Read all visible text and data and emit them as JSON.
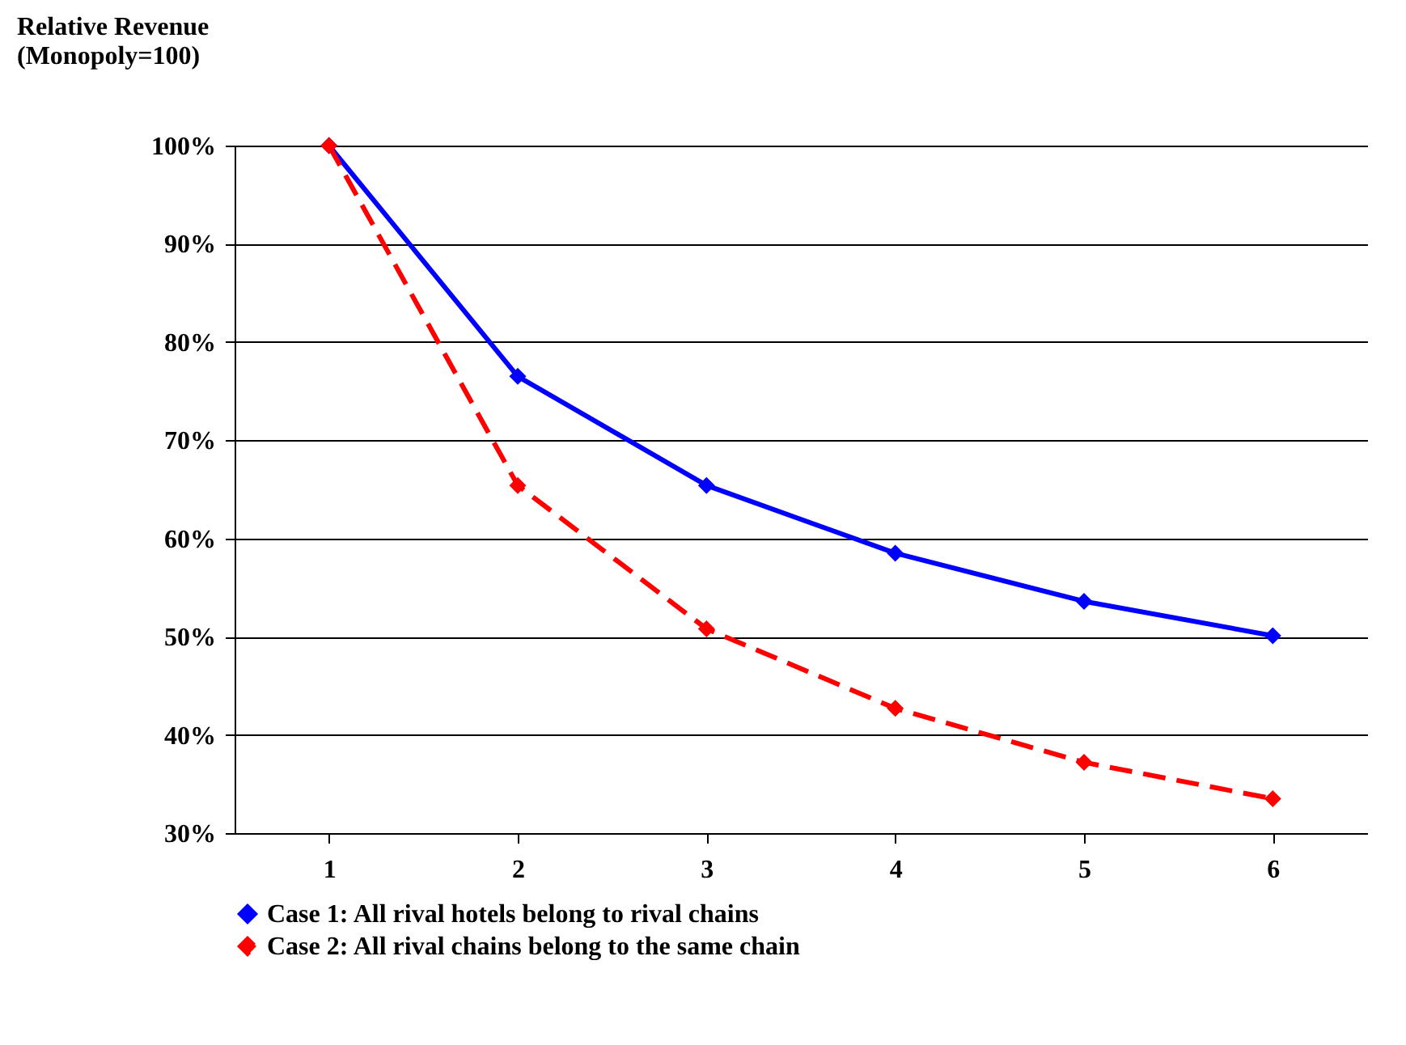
{
  "chart_data": {
    "type": "line",
    "ylabel": "Relative Revenue\n(Monopoly=100)",
    "categories": [
      "1",
      "2",
      "3",
      "4",
      "5",
      "6"
    ],
    "series": [
      {
        "name": "Case 1: All rival hotels belong to rival chains",
        "color": "#0000ff",
        "line_style": "solid",
        "values": [
          100,
          76.5,
          65.4,
          58.5,
          53.6,
          50.1
        ]
      },
      {
        "name": "Case 2: All rival chains belong to the same chain",
        "color": "#ff0000",
        "line_style": "dashed",
        "values": [
          100,
          65.4,
          50.8,
          42.7,
          37.2,
          33.5
        ]
      }
    ],
    "ylim": [
      30,
      100
    ],
    "yticks": [
      {
        "value": 30,
        "label": "30%"
      },
      {
        "value": 40,
        "label": "40%"
      },
      {
        "value": 50,
        "label": "50%"
      },
      {
        "value": 60,
        "label": "60%"
      },
      {
        "value": 70,
        "label": "70%"
      },
      {
        "value": 80,
        "label": "80%"
      },
      {
        "value": 90,
        "label": "90%"
      },
      {
        "value": 100,
        "label": "100%"
      }
    ],
    "grid": "y",
    "marker": "diamond",
    "legend": "bottom"
  }
}
